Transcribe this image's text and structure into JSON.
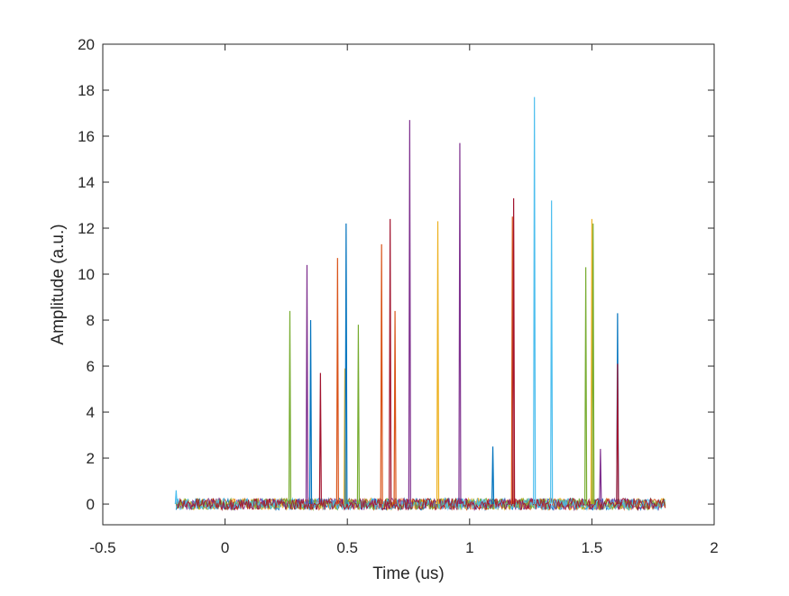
{
  "chart_data": {
    "type": "line",
    "title": "",
    "xlabel": "Time (us)",
    "ylabel": "Amplitude (a.u.)",
    "xlim": [
      -0.5,
      2
    ],
    "ylim": [
      -0.9,
      20
    ],
    "xticks": [
      -0.5,
      0,
      0.5,
      1,
      1.5,
      2
    ],
    "xtick_labels": [
      "-0.5",
      "0",
      "0.5",
      "1",
      "1.5",
      "2"
    ],
    "yticks": [
      0,
      2,
      4,
      6,
      8,
      10,
      12,
      14,
      16,
      18,
      20
    ],
    "ytick_labels": [
      "0",
      "2",
      "4",
      "6",
      "8",
      "10",
      "12",
      "14",
      "16",
      "18",
      "20"
    ],
    "grid": false,
    "legend": "none",
    "noise_band": {
      "x_start": -0.2,
      "x_end": 1.8,
      "amplitude": 0.25
    },
    "palette": [
      "#0072BD",
      "#D95319",
      "#EDB120",
      "#7E2F8E",
      "#77AC30",
      "#4DBEEE",
      "#A2142F"
    ],
    "pulses": [
      {
        "x": -0.2,
        "y": 0.6,
        "color": "#4DBEEE"
      },
      {
        "x": 0.265,
        "y": 8.4,
        "color": "#77AC30"
      },
      {
        "x": 0.335,
        "y": 10.4,
        "color": "#7E2F8E"
      },
      {
        "x": 0.35,
        "y": 8.0,
        "color": "#0072BD"
      },
      {
        "x": 0.39,
        "y": 5.7,
        "color": "#A2142F"
      },
      {
        "x": 0.46,
        "y": 10.7,
        "color": "#D95319"
      },
      {
        "x": 0.49,
        "y": 5.9,
        "color": "#EDB120"
      },
      {
        "x": 0.495,
        "y": 12.2,
        "color": "#0072BD"
      },
      {
        "x": 0.545,
        "y": 7.8,
        "color": "#77AC30"
      },
      {
        "x": 0.64,
        "y": 11.3,
        "color": "#D95319"
      },
      {
        "x": 0.675,
        "y": 12.4,
        "color": "#A2142F"
      },
      {
        "x": 0.695,
        "y": 8.4,
        "color": "#D95319"
      },
      {
        "x": 0.755,
        "y": 16.7,
        "color": "#7E2F8E"
      },
      {
        "x": 0.87,
        "y": 12.3,
        "color": "#EDB120"
      },
      {
        "x": 0.96,
        "y": 15.7,
        "color": "#7E2F8E"
      },
      {
        "x": 1.095,
        "y": 2.5,
        "color": "#0072BD"
      },
      {
        "x": 1.175,
        "y": 12.5,
        "color": "#D95319"
      },
      {
        "x": 1.18,
        "y": 13.3,
        "color": "#A2142F"
      },
      {
        "x": 1.265,
        "y": 17.7,
        "color": "#4DBEEE"
      },
      {
        "x": 1.335,
        "y": 13.2,
        "color": "#4DBEEE"
      },
      {
        "x": 1.475,
        "y": 10.3,
        "color": "#77AC30"
      },
      {
        "x": 1.5,
        "y": 12.4,
        "color": "#EDB120"
      },
      {
        "x": 1.505,
        "y": 12.2,
        "color": "#77AC30"
      },
      {
        "x": 1.535,
        "y": 2.4,
        "color": "#7E2F8E"
      },
      {
        "x": 1.605,
        "y": 8.3,
        "color": "#0072BD"
      },
      {
        "x": 1.605,
        "y": 6.1,
        "color": "#A2142F"
      }
    ]
  }
}
